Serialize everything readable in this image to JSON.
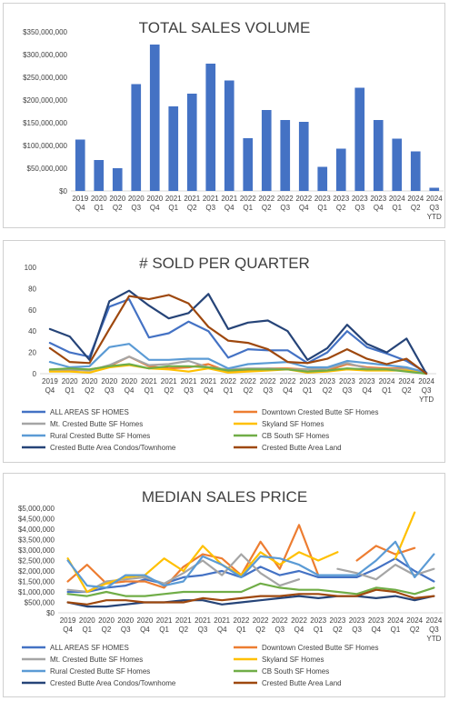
{
  "chart_data": [
    {
      "type": "bar",
      "title": "TOTAL SALES VOLUME",
      "categories": [
        [
          "2019",
          "Q4"
        ],
        [
          "2020",
          "Q1"
        ],
        [
          "2020",
          "Q2"
        ],
        [
          "2020",
          "Q3"
        ],
        [
          "2020",
          "Q4"
        ],
        [
          "2021",
          "Q1"
        ],
        [
          "2021",
          "Q2"
        ],
        [
          "2021",
          "Q3"
        ],
        [
          "2021",
          "Q4"
        ],
        [
          "2022",
          "Q1"
        ],
        [
          "2022",
          "Q2"
        ],
        [
          "2022",
          "Q3"
        ],
        [
          "2022",
          "Q4"
        ],
        [
          "2023",
          "Q1"
        ],
        [
          "2023",
          "Q2"
        ],
        [
          "2023",
          "Q3"
        ],
        [
          "2023",
          "Q4"
        ],
        [
          "2024",
          "Q1"
        ],
        [
          "2024",
          "Q2"
        ],
        [
          "2024",
          "Q3",
          "YTD"
        ]
      ],
      "values": [
        113000000,
        68000000,
        50000000,
        235000000,
        322000000,
        186000000,
        214000000,
        280000000,
        243000000,
        116000000,
        178000000,
        156000000,
        152000000,
        53000000,
        93000000,
        227000000,
        156000000,
        115000000,
        87000000,
        7000000
      ],
      "ylim": [
        0,
        350000000
      ],
      "yticks": [
        "$0",
        "$50,000,000",
        "$100,000,000",
        "$150,000,000",
        "$200,000,000",
        "$250,000,000",
        "$300,000,000",
        "$350,000,000"
      ],
      "bar_color": "#4472c4",
      "grid": false
    },
    {
      "type": "line",
      "title": "# SOLD PER QUARTER",
      "categories": [
        [
          "2019",
          "Q4"
        ],
        [
          "2020",
          "Q1"
        ],
        [
          "2020",
          "Q2"
        ],
        [
          "2020",
          "Q3"
        ],
        [
          "2020",
          "Q4"
        ],
        [
          "2021",
          "Q1"
        ],
        [
          "2021",
          "Q2"
        ],
        [
          "2021",
          "Q3"
        ],
        [
          "2021",
          "Q4"
        ],
        [
          "2022",
          "Q1"
        ],
        [
          "2022",
          "Q2"
        ],
        [
          "2022",
          "Q3"
        ],
        [
          "2022",
          "Q4"
        ],
        [
          "2023",
          "Q1"
        ],
        [
          "2023",
          "Q2"
        ],
        [
          "2023",
          "Q3"
        ],
        [
          "2023",
          "Q4"
        ],
        [
          "2024",
          "Q1"
        ],
        [
          "2024",
          "Q2"
        ],
        [
          "2024",
          "Q3",
          "YTD"
        ]
      ],
      "ylim": [
        0,
        100
      ],
      "yticks": [
        "0",
        "20",
        "40",
        "60",
        "80",
        "100"
      ],
      "series": [
        {
          "name": "ALL AREAS SF HOMES",
          "color": "#4472c4",
          "values": [
            29,
            20,
            16,
            63,
            70,
            34,
            38,
            49,
            40,
            15,
            23,
            22,
            22,
            10,
            20,
            40,
            25,
            19,
            12,
            1
          ]
        },
        {
          "name": "Downtown Crested Butte SF Homes",
          "color": "#ed7d31",
          "values": [
            3,
            3,
            4,
            7,
            16,
            7,
            5,
            6,
            9,
            2,
            3,
            5,
            5,
            4,
            3,
            9,
            6,
            5,
            5,
            1
          ]
        },
        {
          "name": "Mt. Crested Butte SF Homes",
          "color": "#a5a5a5",
          "values": [
            3,
            4,
            3,
            8,
            16,
            8,
            9,
            12,
            6,
            4,
            5,
            5,
            4,
            4,
            5,
            10,
            5,
            4,
            4,
            0
          ]
        },
        {
          "name": "Skyland SF Homes",
          "color": "#ffc000",
          "values": [
            2,
            2,
            1,
            6,
            8,
            5,
            4,
            2,
            5,
            1,
            2,
            3,
            4,
            1,
            2,
            4,
            3,
            3,
            3,
            0
          ]
        },
        {
          "name": "Rural Crested Butte SF Homes",
          "color": "#5b9bd5",
          "values": [
            11,
            6,
            7,
            25,
            28,
            13,
            13,
            14,
            14,
            5,
            9,
            10,
            11,
            6,
            6,
            12,
            10,
            8,
            6,
            1
          ]
        },
        {
          "name": "CB South SF Homes",
          "color": "#70ad47",
          "values": [
            4,
            5,
            4,
            7,
            9,
            5,
            7,
            7,
            6,
            3,
            4,
            4,
            4,
            2,
            3,
            5,
            4,
            4,
            2,
            0
          ]
        },
        {
          "name": "Crested Butte Area Condos/Townhome",
          "color": "#264478",
          "values": [
            42,
            35,
            13,
            68,
            78,
            64,
            52,
            57,
            75,
            42,
            48,
            50,
            40,
            13,
            24,
            46,
            28,
            20,
            33,
            0
          ]
        },
        {
          "name": "Crested Butte Area Land",
          "color": "#9e480e",
          "values": [
            24,
            11,
            10,
            42,
            73,
            70,
            74,
            66,
            44,
            31,
            29,
            23,
            11,
            10,
            14,
            23,
            14,
            9,
            14,
            0
          ]
        }
      ],
      "legend_position": "bottom"
    },
    {
      "type": "line",
      "title": "MEDIAN SALES PRICE",
      "categories": [
        [
          "2019",
          "Q4"
        ],
        [
          "2020",
          "Q1"
        ],
        [
          "2020",
          "Q2"
        ],
        [
          "2020",
          "Q3"
        ],
        [
          "2020",
          "Q4"
        ],
        [
          "2021",
          "Q1"
        ],
        [
          "2021",
          "Q2"
        ],
        [
          "2021",
          "Q3"
        ],
        [
          "2021",
          "Q4"
        ],
        [
          "2022",
          "Q1"
        ],
        [
          "2022",
          "Q2"
        ],
        [
          "2022",
          "Q3"
        ],
        [
          "2022",
          "Q4"
        ],
        [
          "2023",
          "Q1"
        ],
        [
          "2023",
          "Q2"
        ],
        [
          "2023",
          "Q3"
        ],
        [
          "2023",
          "Q4"
        ],
        [
          "2024",
          "Q1"
        ],
        [
          "2024",
          "Q2"
        ],
        [
          "2024",
          "Q3",
          "YTD"
        ]
      ],
      "ylim": [
        0,
        5000000
      ],
      "yticks": [
        "$0",
        "$500,000",
        "$1,000,000",
        "$1,500,000",
        "$2,000,000",
        "$2,500,000",
        "$3,000,000",
        "$3,500,000",
        "$4,000,000",
        "$4,500,000",
        "$5,000,000"
      ],
      "series": [
        {
          "name": "ALL AREAS SF HOMES",
          "color": "#4472c4",
          "values": [
            1000000,
            1000000,
            1200000,
            1300000,
            1600000,
            1400000,
            1700000,
            1800000,
            2000000,
            1700000,
            2200000,
            1800000,
            2000000,
            1700000,
            1700000,
            1700000,
            2100000,
            2600000,
            2000000,
            1500000
          ]
        },
        {
          "name": "Downtown Crested Butte SF Homes",
          "color": "#ed7d31",
          "values": [
            1500000,
            2300000,
            1400000,
            1500000,
            1500000,
            1200000,
            2200000,
            2800000,
            2600000,
            1800000,
            3400000,
            2100000,
            4200000,
            1800000,
            null,
            2500000,
            3200000,
            2800000,
            3100000,
            null
          ]
        },
        {
          "name": "Mt. Crested Butte SF Homes",
          "color": "#a5a5a5",
          "values": [
            1100000,
            1000000,
            1500000,
            1600000,
            1700000,
            1400000,
            1900000,
            2500000,
            1800000,
            2800000,
            1900000,
            1300000,
            1600000,
            null,
            2100000,
            1900000,
            1600000,
            2300000,
            1800000,
            2100000
          ]
        },
        {
          "name": "Skyland SF Homes",
          "color": "#ffc000",
          "values": [
            2600000,
            1000000,
            1400000,
            1700000,
            1800000,
            2600000,
            2000000,
            3200000,
            2300000,
            1800000,
            2900000,
            2300000,
            2900000,
            2500000,
            2900000,
            null,
            null,
            2600000,
            4800000,
            null
          ]
        },
        {
          "name": "Rural Crested Butte SF Homes",
          "color": "#5b9bd5",
          "values": [
            2500000,
            1300000,
            1200000,
            1800000,
            1800000,
            1300000,
            1500000,
            2700000,
            2300000,
            1700000,
            2700000,
            2600000,
            2300000,
            1800000,
            1800000,
            1800000,
            2500000,
            3400000,
            1700000,
            2800000
          ]
        },
        {
          "name": "CB South SF Homes",
          "color": "#70ad47",
          "values": [
            900000,
            800000,
            1000000,
            800000,
            800000,
            900000,
            1000000,
            1000000,
            1000000,
            1000000,
            1400000,
            1200000,
            1100000,
            1100000,
            1000000,
            900000,
            1200000,
            1100000,
            900000,
            1200000
          ]
        },
        {
          "name": "Crested Butte Area Condos/Townhome",
          "color": "#264478",
          "values": [
            500000,
            300000,
            300000,
            400000,
            500000,
            500000,
            600000,
            600000,
            400000,
            500000,
            600000,
            700000,
            800000,
            700000,
            800000,
            800000,
            700000,
            800000,
            600000,
            800000
          ]
        },
        {
          "name": "Crested Butte Area Land",
          "color": "#9e480e",
          "values": [
            500000,
            400000,
            600000,
            600000,
            500000,
            500000,
            500000,
            700000,
            600000,
            700000,
            800000,
            800000,
            900000,
            900000,
            800000,
            800000,
            1100000,
            1000000,
            700000,
            800000
          ]
        }
      ],
      "legend_position": "bottom"
    }
  ]
}
